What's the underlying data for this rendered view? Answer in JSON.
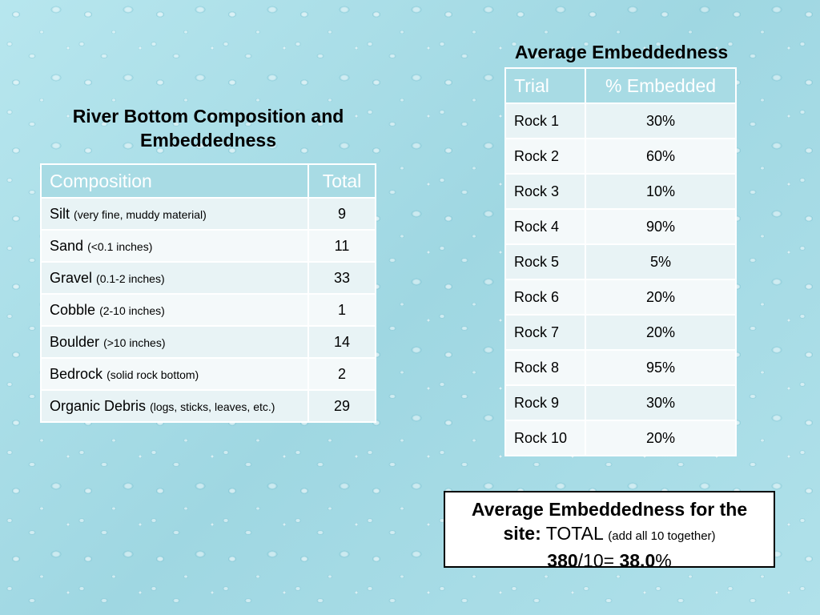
{
  "composition": {
    "title": "River Bottom Composition and Embeddedness",
    "headers": [
      "Composition",
      "Total"
    ],
    "rows": [
      {
        "name": "Silt",
        "desc": "(very fine, muddy material)",
        "total": "9"
      },
      {
        "name": "Sand",
        "desc": "(<0.1 inches)",
        "total": "11"
      },
      {
        "name": "Gravel",
        "desc": "(0.1-2 inches)",
        "total": "33"
      },
      {
        "name": "Cobble",
        "desc": "(2-10 inches)",
        "total": "1"
      },
      {
        "name": "Boulder",
        "desc": "(>10 inches)",
        "total": "14"
      },
      {
        "name": "Bedrock",
        "desc": "(solid rock bottom)",
        "total": "2"
      },
      {
        "name": "Organic Debris",
        "desc": "(logs, sticks, leaves, etc.)",
        "total": "29"
      }
    ]
  },
  "embeddedness": {
    "title": "Average Embeddedness",
    "headers": [
      "Trial",
      "% Embedded"
    ],
    "rows": [
      {
        "trial": "Rock 1",
        "pct": "30%"
      },
      {
        "trial": "Rock 2",
        "pct": "60%"
      },
      {
        "trial": "Rock 3",
        "pct": "10%"
      },
      {
        "trial": "Rock 4",
        "pct": "90%"
      },
      {
        "trial": "Rock 5",
        "pct": "5%"
      },
      {
        "trial": "Rock 6",
        "pct": "20%"
      },
      {
        "trial": "Rock 7",
        "pct": "20%"
      },
      {
        "trial": "Rock 8",
        "pct": "95%"
      },
      {
        "trial": "Rock 9",
        "pct": "30%"
      },
      {
        "trial": "Rock 10",
        "pct": "20%"
      }
    ]
  },
  "summary": {
    "line1": "Average Embeddedness for the",
    "site_label": "site:",
    "total_label": "TOTAL",
    "note": "(add all 10 together)",
    "sum": "380",
    "divisor": "/10=",
    "result": "38.0",
    "unit": "%"
  },
  "colors": {
    "header_bg": "#a8dbe4",
    "row_odd": "#e8f3f5",
    "row_even": "#f4f9fa",
    "background": "#a9dde6"
  }
}
